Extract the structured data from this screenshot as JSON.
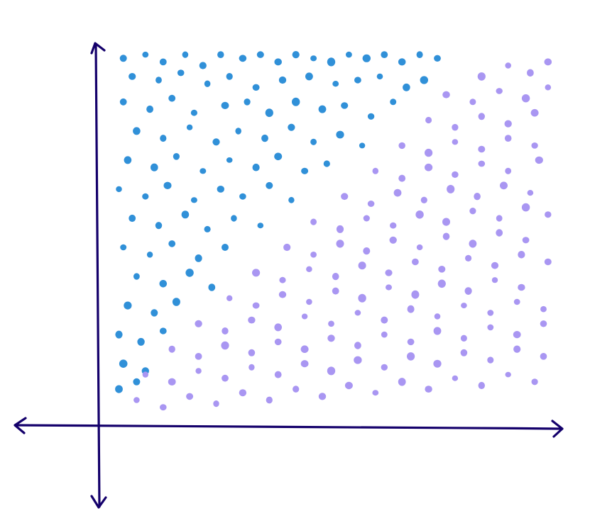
{
  "chart_data": {
    "type": "scatter",
    "title": "",
    "xlabel": "",
    "ylabel": "",
    "xlim": [
      0,
      1
    ],
    "ylim": [
      0,
      1
    ],
    "grid": false,
    "legend": "none",
    "axis_color": "#14006b",
    "series": [
      {
        "color": "#3090d8",
        "points": [
          [
            0.03,
            0.98
          ],
          [
            0.08,
            0.99
          ],
          [
            0.12,
            0.97
          ],
          [
            0.17,
            0.99
          ],
          [
            0.21,
            0.96
          ],
          [
            0.25,
            0.99
          ],
          [
            0.3,
            0.98
          ],
          [
            0.34,
            0.99
          ],
          [
            0.38,
            0.97
          ],
          [
            0.42,
            0.99
          ],
          [
            0.46,
            0.98
          ],
          [
            0.5,
            0.97
          ],
          [
            0.54,
            0.99
          ],
          [
            0.58,
            0.98
          ],
          [
            0.62,
            0.99
          ],
          [
            0.66,
            0.97
          ],
          [
            0.7,
            0.99
          ],
          [
            0.74,
            0.98
          ],
          [
            0.05,
            0.93
          ],
          [
            0.11,
            0.92
          ],
          [
            0.16,
            0.94
          ],
          [
            0.22,
            0.91
          ],
          [
            0.27,
            0.93
          ],
          [
            0.33,
            0.9
          ],
          [
            0.39,
            0.92
          ],
          [
            0.45,
            0.93
          ],
          [
            0.51,
            0.91
          ],
          [
            0.56,
            0.92
          ],
          [
            0.61,
            0.93
          ],
          [
            0.67,
            0.9
          ],
          [
            0.71,
            0.92
          ],
          [
            0.03,
            0.86
          ],
          [
            0.09,
            0.84
          ],
          [
            0.14,
            0.87
          ],
          [
            0.19,
            0.83
          ],
          [
            0.26,
            0.85
          ],
          [
            0.31,
            0.86
          ],
          [
            0.36,
            0.83
          ],
          [
            0.42,
            0.86
          ],
          [
            0.48,
            0.84
          ],
          [
            0.53,
            0.85
          ],
          [
            0.59,
            0.82
          ],
          [
            0.64,
            0.86
          ],
          [
            0.06,
            0.78
          ],
          [
            0.12,
            0.76
          ],
          [
            0.18,
            0.79
          ],
          [
            0.24,
            0.75
          ],
          [
            0.29,
            0.78
          ],
          [
            0.35,
            0.76
          ],
          [
            0.41,
            0.79
          ],
          [
            0.46,
            0.75
          ],
          [
            0.52,
            0.77
          ],
          [
            0.57,
            0.74
          ],
          [
            0.04,
            0.7
          ],
          [
            0.1,
            0.68
          ],
          [
            0.15,
            0.71
          ],
          [
            0.21,
            0.67
          ],
          [
            0.27,
            0.7
          ],
          [
            0.33,
            0.68
          ],
          [
            0.38,
            0.71
          ],
          [
            0.44,
            0.67
          ],
          [
            0.49,
            0.69
          ],
          [
            0.02,
            0.62
          ],
          [
            0.08,
            0.6
          ],
          [
            0.13,
            0.63
          ],
          [
            0.19,
            0.59
          ],
          [
            0.25,
            0.62
          ],
          [
            0.3,
            0.6
          ],
          [
            0.36,
            0.63
          ],
          [
            0.41,
            0.59
          ],
          [
            0.05,
            0.54
          ],
          [
            0.11,
            0.52
          ],
          [
            0.17,
            0.55
          ],
          [
            0.22,
            0.51
          ],
          [
            0.28,
            0.54
          ],
          [
            0.34,
            0.52
          ],
          [
            0.03,
            0.46
          ],
          [
            0.09,
            0.44
          ],
          [
            0.14,
            0.47
          ],
          [
            0.2,
            0.43
          ],
          [
            0.26,
            0.46
          ],
          [
            0.06,
            0.38
          ],
          [
            0.12,
            0.36
          ],
          [
            0.18,
            0.39
          ],
          [
            0.23,
            0.35
          ],
          [
            0.04,
            0.3
          ],
          [
            0.1,
            0.28
          ],
          [
            0.15,
            0.31
          ],
          [
            0.02,
            0.22
          ],
          [
            0.07,
            0.2
          ],
          [
            0.12,
            0.23
          ],
          [
            0.03,
            0.14
          ],
          [
            0.08,
            0.12
          ],
          [
            0.02,
            0.07
          ],
          [
            0.06,
            0.09
          ]
        ]
      },
      {
        "color": "#a996f2",
        "points": [
          [
            0.84,
            0.93
          ],
          [
            0.9,
            0.96
          ],
          [
            0.95,
            0.94
          ],
          [
            0.99,
            0.97
          ],
          [
            0.76,
            0.88
          ],
          [
            0.82,
            0.86
          ],
          [
            0.88,
            0.89
          ],
          [
            0.94,
            0.87
          ],
          [
            0.99,
            0.9
          ],
          [
            0.72,
            0.81
          ],
          [
            0.78,
            0.79
          ],
          [
            0.84,
            0.82
          ],
          [
            0.9,
            0.8
          ],
          [
            0.96,
            0.83
          ],
          [
            0.66,
            0.74
          ],
          [
            0.72,
            0.72
          ],
          [
            0.78,
            0.75
          ],
          [
            0.84,
            0.73
          ],
          [
            0.9,
            0.76
          ],
          [
            0.96,
            0.74
          ],
          [
            0.6,
            0.67
          ],
          [
            0.66,
            0.65
          ],
          [
            0.72,
            0.68
          ],
          [
            0.78,
            0.66
          ],
          [
            0.84,
            0.69
          ],
          [
            0.9,
            0.67
          ],
          [
            0.97,
            0.7
          ],
          [
            0.53,
            0.6
          ],
          [
            0.59,
            0.58
          ],
          [
            0.65,
            0.61
          ],
          [
            0.71,
            0.59
          ],
          [
            0.77,
            0.62
          ],
          [
            0.83,
            0.6
          ],
          [
            0.89,
            0.63
          ],
          [
            0.95,
            0.61
          ],
          [
            0.46,
            0.53
          ],
          [
            0.52,
            0.51
          ],
          [
            0.58,
            0.54
          ],
          [
            0.64,
            0.52
          ],
          [
            0.7,
            0.55
          ],
          [
            0.76,
            0.53
          ],
          [
            0.82,
            0.56
          ],
          [
            0.88,
            0.54
          ],
          [
            0.94,
            0.57
          ],
          [
            0.99,
            0.55
          ],
          [
            0.4,
            0.46
          ],
          [
            0.46,
            0.44
          ],
          [
            0.52,
            0.47
          ],
          [
            0.58,
            0.45
          ],
          [
            0.64,
            0.48
          ],
          [
            0.7,
            0.46
          ],
          [
            0.76,
            0.49
          ],
          [
            0.82,
            0.47
          ],
          [
            0.88,
            0.5
          ],
          [
            0.94,
            0.48
          ],
          [
            0.33,
            0.39
          ],
          [
            0.39,
            0.37
          ],
          [
            0.45,
            0.4
          ],
          [
            0.51,
            0.38
          ],
          [
            0.57,
            0.41
          ],
          [
            0.63,
            0.39
          ],
          [
            0.69,
            0.42
          ],
          [
            0.75,
            0.4
          ],
          [
            0.81,
            0.43
          ],
          [
            0.87,
            0.41
          ],
          [
            0.93,
            0.44
          ],
          [
            0.99,
            0.42
          ],
          [
            0.27,
            0.32
          ],
          [
            0.33,
            0.3
          ],
          [
            0.39,
            0.33
          ],
          [
            0.45,
            0.31
          ],
          [
            0.51,
            0.34
          ],
          [
            0.57,
            0.32
          ],
          [
            0.63,
            0.35
          ],
          [
            0.69,
            0.33
          ],
          [
            0.75,
            0.36
          ],
          [
            0.81,
            0.34
          ],
          [
            0.87,
            0.37
          ],
          [
            0.93,
            0.35
          ],
          [
            0.2,
            0.25
          ],
          [
            0.26,
            0.23
          ],
          [
            0.32,
            0.26
          ],
          [
            0.38,
            0.24
          ],
          [
            0.44,
            0.27
          ],
          [
            0.5,
            0.25
          ],
          [
            0.56,
            0.28
          ],
          [
            0.62,
            0.26
          ],
          [
            0.68,
            0.29
          ],
          [
            0.74,
            0.27
          ],
          [
            0.8,
            0.3
          ],
          [
            0.86,
            0.28
          ],
          [
            0.92,
            0.31
          ],
          [
            0.98,
            0.29
          ],
          [
            0.14,
            0.18
          ],
          [
            0.2,
            0.16
          ],
          [
            0.26,
            0.19
          ],
          [
            0.32,
            0.17
          ],
          [
            0.38,
            0.2
          ],
          [
            0.44,
            0.18
          ],
          [
            0.5,
            0.21
          ],
          [
            0.56,
            0.19
          ],
          [
            0.62,
            0.22
          ],
          [
            0.68,
            0.2
          ],
          [
            0.74,
            0.23
          ],
          [
            0.8,
            0.21
          ],
          [
            0.86,
            0.24
          ],
          [
            0.92,
            0.22
          ],
          [
            0.98,
            0.25
          ],
          [
            0.08,
            0.11
          ],
          [
            0.14,
            0.09
          ],
          [
            0.2,
            0.12
          ],
          [
            0.26,
            0.1
          ],
          [
            0.32,
            0.13
          ],
          [
            0.38,
            0.11
          ],
          [
            0.44,
            0.14
          ],
          [
            0.5,
            0.12
          ],
          [
            0.56,
            0.15
          ],
          [
            0.62,
            0.13
          ],
          [
            0.68,
            0.16
          ],
          [
            0.74,
            0.14
          ],
          [
            0.8,
            0.17
          ],
          [
            0.86,
            0.15
          ],
          [
            0.92,
            0.18
          ],
          [
            0.98,
            0.16
          ],
          [
            0.06,
            0.04
          ],
          [
            0.12,
            0.02
          ],
          [
            0.18,
            0.05
          ],
          [
            0.24,
            0.03
          ],
          [
            0.3,
            0.06
          ],
          [
            0.36,
            0.04
          ],
          [
            0.42,
            0.07
          ],
          [
            0.48,
            0.05
          ],
          [
            0.54,
            0.08
          ],
          [
            0.6,
            0.06
          ],
          [
            0.66,
            0.09
          ],
          [
            0.72,
            0.07
          ],
          [
            0.78,
            0.1
          ],
          [
            0.84,
            0.08
          ],
          [
            0.9,
            0.11
          ],
          [
            0.96,
            0.09
          ]
        ]
      }
    ]
  }
}
